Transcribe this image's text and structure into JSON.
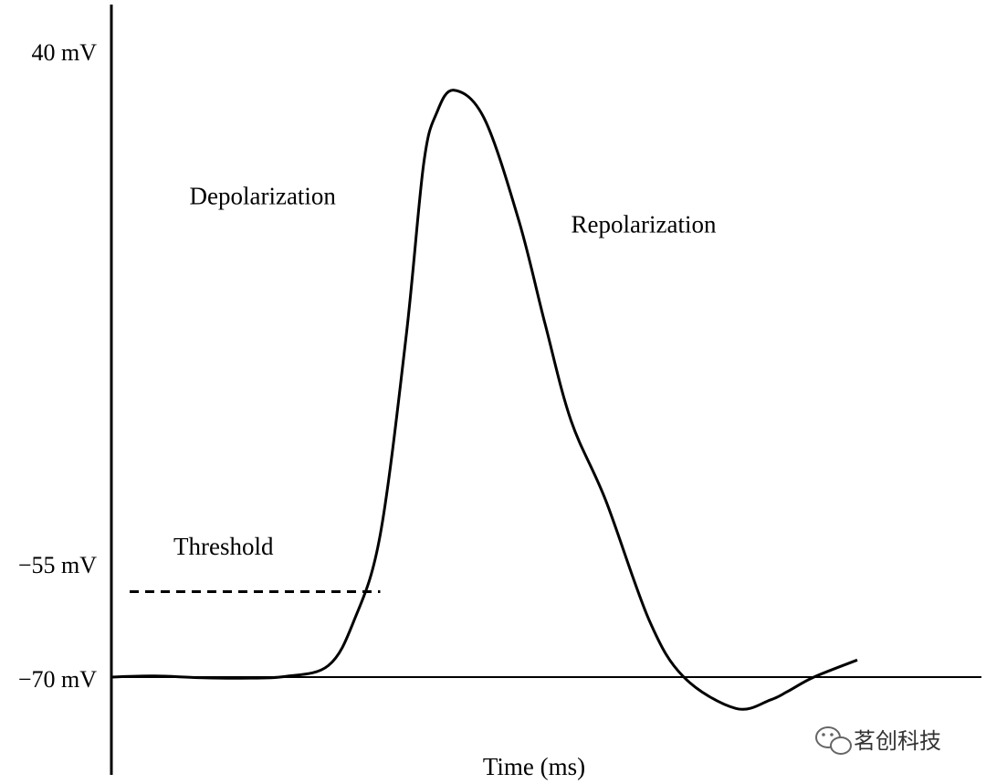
{
  "chart_data": {
    "type": "line",
    "title": "",
    "xlabel": "Time (ms)",
    "ylabel": "",
    "y_ticks": [
      {
        "value": 40,
        "label": "40 mV"
      },
      {
        "value": -55,
        "label": "−55 mV"
      },
      {
        "value": -70,
        "label": "−70 mV"
      }
    ],
    "ylim": [
      -80,
      45
    ],
    "xlim": [
      0,
      10
    ],
    "grid": false,
    "series": [
      {
        "name": "",
        "x": [
          0,
          0.5,
          1.0,
          1.5,
          2.0,
          2.5,
          2.8,
          3.1,
          3.4,
          3.6,
          3.75,
          3.95,
          4.3,
          4.7,
          5.0,
          5.3,
          5.7,
          6.2,
          6.6,
          7.2,
          7.6,
          7.8,
          8.1,
          8.6
        ],
        "values": [
          -70,
          -69.8,
          -70.1,
          -70.2,
          -69.9,
          -68,
          -60,
          -45,
          -10,
          20,
          29,
          33,
          28,
          10,
          -8,
          -25,
          -39,
          -60,
          -70,
          -75.5,
          -74,
          -72.5,
          -70,
          -67
        ]
      }
    ],
    "threshold": {
      "value": -55,
      "label": "Threshold",
      "x_end": 3.1
    },
    "annotations": [
      {
        "text": "Depolarization",
        "x": 0.9,
        "y": 13
      },
      {
        "text": "Repolarization",
        "x": 5.3,
        "y": 8
      }
    ]
  },
  "watermark": {
    "icon": "wechat-icon",
    "text": "茗创科技"
  }
}
